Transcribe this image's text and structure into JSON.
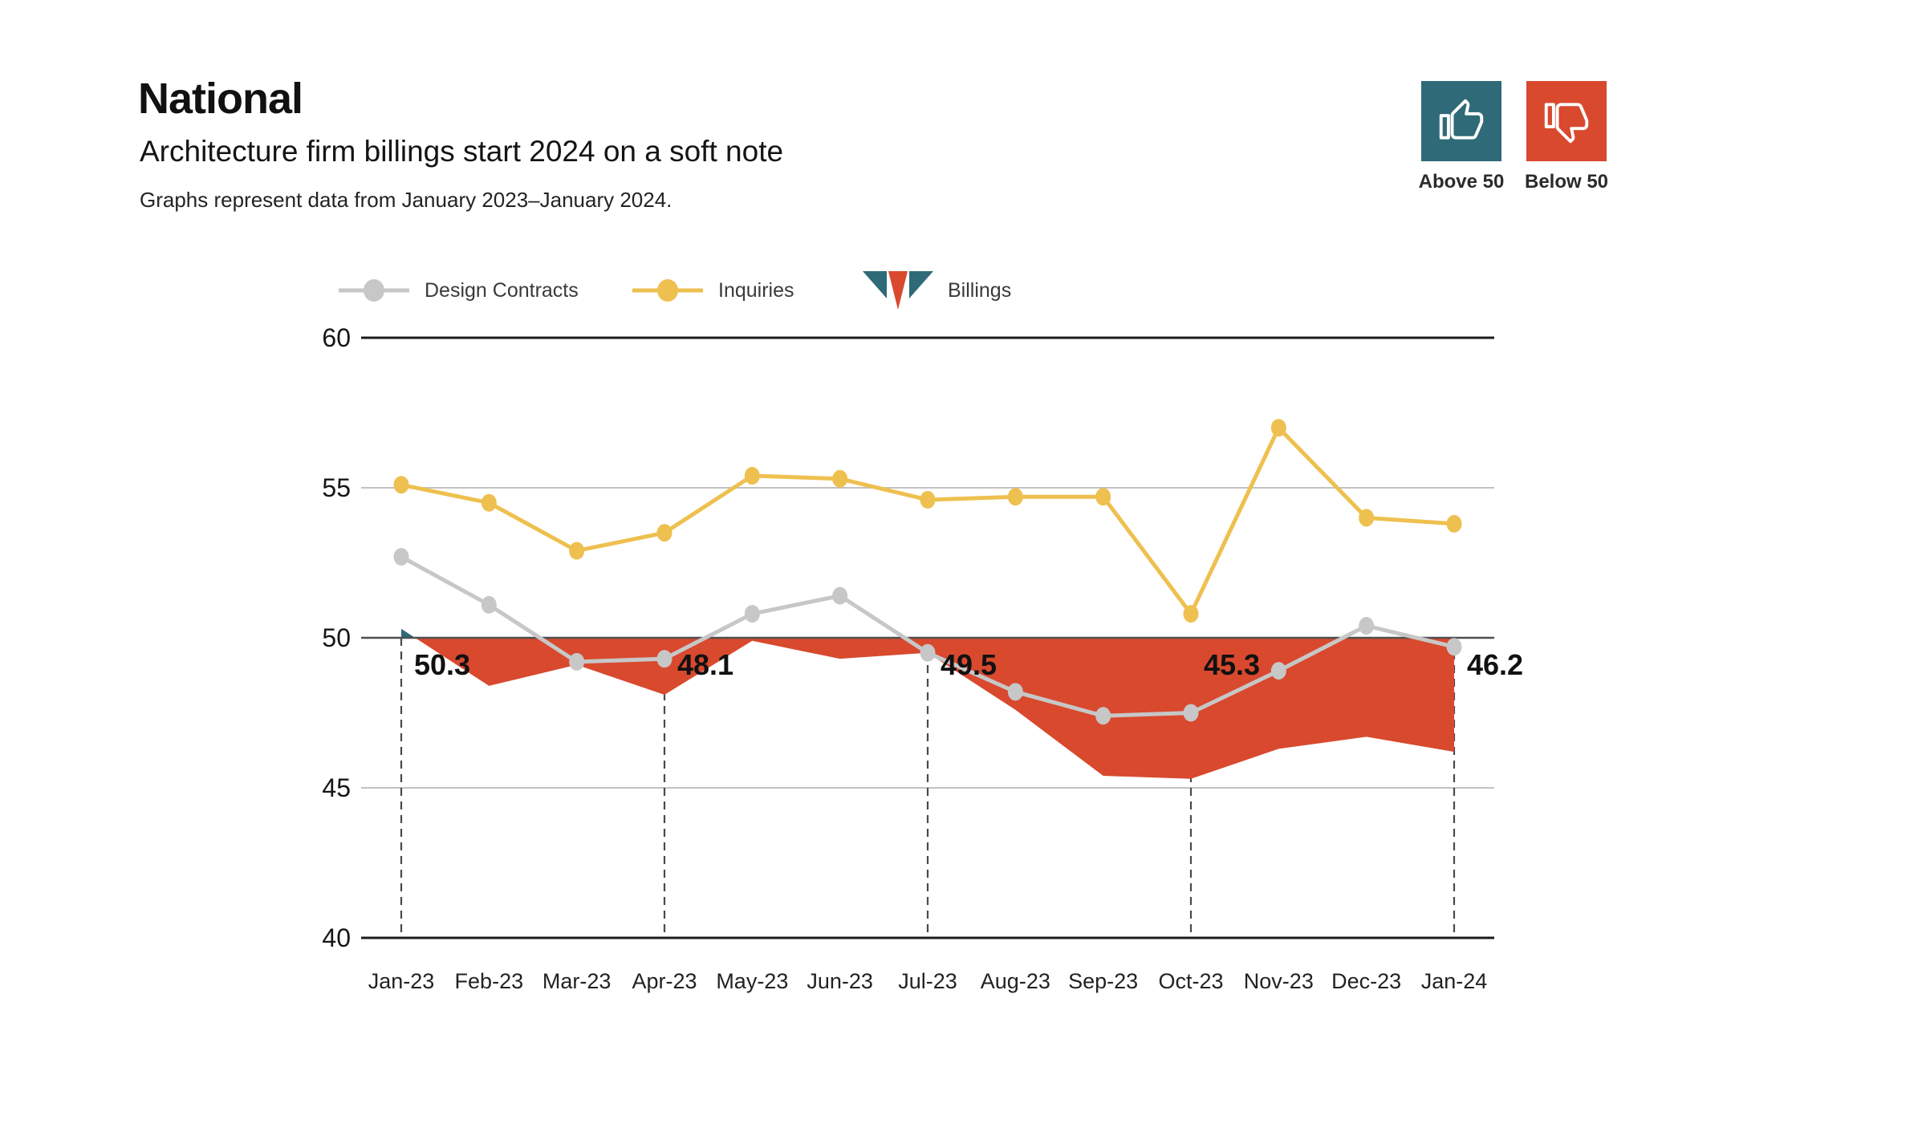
{
  "header": {
    "title": "National",
    "subtitle": "Architecture firm billings start 2024 on a soft note",
    "caption": "Graphs represent data from January 2023–January 2024."
  },
  "key": {
    "above": {
      "label": "Above 50",
      "color": "#2f6a78"
    },
    "below": {
      "label": "Below 50",
      "color": "#d8492e"
    }
  },
  "legend": [
    {
      "label": "Design Contracts",
      "color": "#c7c7c7",
      "marker": "line-dot"
    },
    {
      "label": "Inquiries",
      "color": "#eec04f",
      "marker": "line-dot"
    },
    {
      "label": "Billings",
      "marker": "area-icon",
      "above_color": "#2f6a78",
      "below_color": "#d8492e"
    }
  ],
  "chart_data": {
    "type": "line",
    "categories": [
      "Jan-23",
      "Feb-23",
      "Mar-23",
      "Apr-23",
      "May-23",
      "Jun-23",
      "Jul-23",
      "Aug-23",
      "Sep-23",
      "Oct-23",
      "Nov-23",
      "Dec-23",
      "Jan-24"
    ],
    "series": [
      {
        "name": "Design Contracts",
        "kind": "line",
        "color": "#c7c7c7",
        "values": [
          52.7,
          51.1,
          49.2,
          49.3,
          50.8,
          51.4,
          49.5,
          48.2,
          47.4,
          47.5,
          48.9,
          50.4,
          49.7
        ]
      },
      {
        "name": "Inquiries",
        "kind": "line",
        "color": "#eec04f",
        "values": [
          55.1,
          54.5,
          52.9,
          53.5,
          55.4,
          55.3,
          54.6,
          54.7,
          54.7,
          50.8,
          57.0,
          54.0,
          53.8
        ]
      },
      {
        "name": "Billings",
        "kind": "area-vs-baseline",
        "baseline": 50,
        "above_color": "#2f6a78",
        "below_color": "#d8492e",
        "values": [
          50.3,
          48.4,
          49.1,
          48.1,
          49.9,
          49.3,
          49.5,
          47.6,
          45.4,
          45.3,
          46.3,
          46.7,
          46.2
        ]
      }
    ],
    "annotations": [
      {
        "index": 0,
        "text": "50.3"
      },
      {
        "index": 3,
        "text": "48.1"
      },
      {
        "index": 6,
        "text": "49.5"
      },
      {
        "index": 9,
        "text": "45.3"
      },
      {
        "index": 12,
        "text": "46.2"
      }
    ],
    "dashed_indices": [
      0,
      3,
      6,
      9,
      12
    ],
    "ylim": [
      40,
      60
    ],
    "yticks": [
      40,
      45,
      50,
      55,
      60
    ],
    "grid": "horizontal",
    "legend_position": "top"
  }
}
